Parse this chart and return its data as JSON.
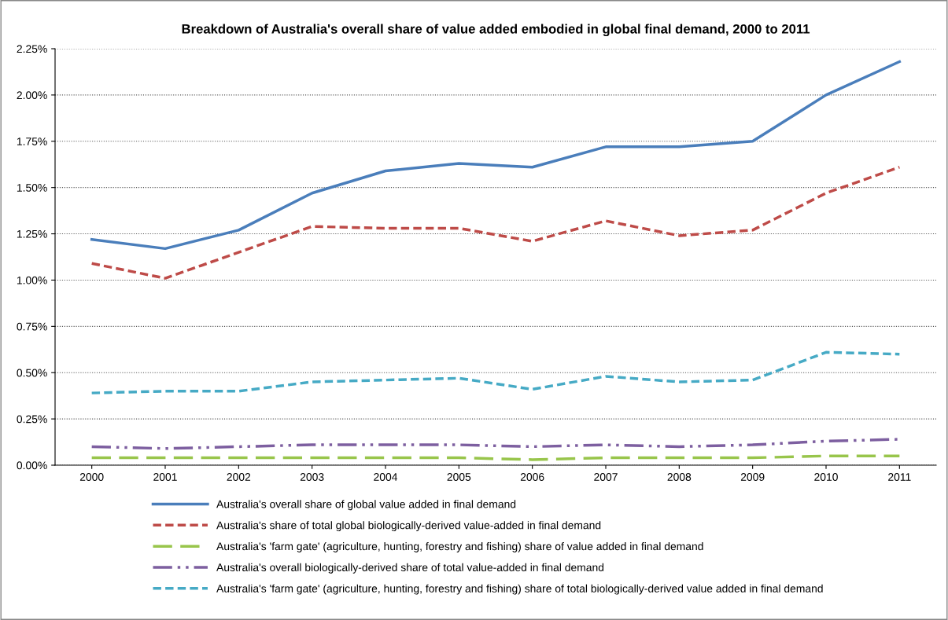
{
  "chart_data": {
    "type": "line",
    "title": "Breakdown of Australia's overall share of value added embodied in global final demand, 2000 to 2011",
    "categories": [
      "2000",
      "2001",
      "2002",
      "2003",
      "2004",
      "2005",
      "2006",
      "2007",
      "2008",
      "2009",
      "2010",
      "2011"
    ],
    "series": [
      {
        "name": "Australia's overall share of global value added in final demand",
        "color": "#4a7ebb",
        "line_style": "solid",
        "values": [
          1.22,
          1.17,
          1.27,
          1.47,
          1.59,
          1.63,
          1.61,
          1.72,
          1.72,
          1.75,
          2.0,
          2.18
        ]
      },
      {
        "name": "Australia's share of total global biologically-derived value-added in final demand",
        "color": "#be4b48",
        "line_style": "dashed",
        "values": [
          1.09,
          1.01,
          1.15,
          1.29,
          1.28,
          1.28,
          1.21,
          1.32,
          1.24,
          1.27,
          1.47,
          1.61
        ]
      },
      {
        "name": "Australia's 'farm gate' (agriculture, hunting, forestry and fishing) share of value added in final demand",
        "color": "#98c54b",
        "line_style": "longdash",
        "values": [
          0.04,
          0.04,
          0.04,
          0.04,
          0.04,
          0.04,
          0.03,
          0.04,
          0.04,
          0.04,
          0.05,
          0.05
        ]
      },
      {
        "name": "Australia's overall biologically-derived share of total value-added in final demand",
        "color": "#7d5fa0",
        "line_style": "dashdotdot",
        "values": [
          0.1,
          0.09,
          0.1,
          0.11,
          0.11,
          0.11,
          0.1,
          0.11,
          0.1,
          0.11,
          0.13,
          0.14
        ]
      },
      {
        "name": "Australia's 'farm gate' (agriculture, hunting, forestry and fishing) share of total biologically-derived value added in final demand",
        "color": "#46aac5",
        "line_style": "dashed",
        "values": [
          0.39,
          0.4,
          0.4,
          0.45,
          0.46,
          0.47,
          0.41,
          0.48,
          0.45,
          0.46,
          0.61,
          0.6
        ]
      }
    ],
    "ylim": [
      0,
      2.25
    ],
    "yticks": [
      {
        "value": 0,
        "label": "0.00%"
      },
      {
        "value": 0.25,
        "label": "0.25%"
      },
      {
        "value": 0.5,
        "label": "0.50%"
      },
      {
        "value": 0.75,
        "label": "0.75%"
      },
      {
        "value": 1.0,
        "label": "1.00%"
      },
      {
        "value": 1.25,
        "label": "1.25%"
      },
      {
        "value": 1.5,
        "label": "1.50%"
      },
      {
        "value": 1.75,
        "label": "1.75%"
      },
      {
        "value": 2.0,
        "label": "2.00%"
      },
      {
        "value": 2.25,
        "label": "2.25%"
      }
    ],
    "grid": "y",
    "legend": "bottom",
    "marker": "none"
  }
}
